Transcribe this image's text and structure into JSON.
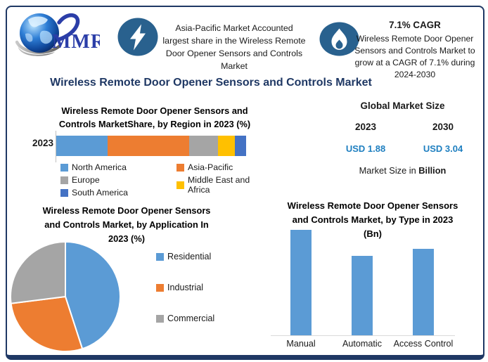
{
  "page": {
    "logo_text": "MMR",
    "title": "Wireless Remote Door Opener Sensors and Controls Market"
  },
  "highlight_left": {
    "icon": "lightning-icon",
    "text": "Asia-Pacific Market Accounted\nlargest share in the Wireless Remote\nDoor Opener Sensors and Controls\nMarket"
  },
  "highlight_right": {
    "icon": "flame-icon",
    "heading": "7.1% CAGR",
    "text": "Wireless Remote Door Opener\nSensors and Controls Market to\ngrow at a CAGR of 7.1% during\n2024-2030"
  },
  "market_size": {
    "title": "Global Market Size",
    "year_left": "2023",
    "year_right": "2030",
    "value_left": "USD 1.88",
    "value_right": "USD 3.04",
    "value_color": "#1e7fc0",
    "footnote_prefix": "Market Size in ",
    "footnote_bold": "Billion"
  },
  "colors": {
    "navy": "#1f3864",
    "icon_circle": "#29618e",
    "chart_blue": "#5b9bd5",
    "chart_orange": "#ed7d31",
    "chart_gray": "#a5a5a5",
    "chart_yellow": "#ffc000",
    "chart_darkblue": "#4472c4"
  },
  "chart_data": [
    {
      "type": "bar",
      "orientation": "horizontal-stacked",
      "title": "Wireless Remote Door Opener Sensors and\nControls MarketShare, by Region in 2023 (%)",
      "categories": [
        "2023"
      ],
      "series": [
        {
          "name": "North America",
          "value": 27,
          "color": "#5b9bd5"
        },
        {
          "name": "Asia-Pacific",
          "value": 43,
          "color": "#ed7d31"
        },
        {
          "name": "Europe",
          "value": 15,
          "color": "#a5a5a5"
        },
        {
          "name": "Middle East and Africa",
          "value": 9,
          "color": "#ffc000"
        },
        {
          "name": "South America",
          "value": 6,
          "color": "#4472c4"
        }
      ],
      "xlabel": "",
      "ylabel": "",
      "xlim": [
        0,
        100
      ],
      "grid": false,
      "legend_position": "bottom"
    },
    {
      "type": "pie",
      "title": "Wireless Remote Door Opener Sensors\nand Controls Market, by Application In\n2023 (%)",
      "slices": [
        {
          "label": "Residential",
          "value": 45,
          "color": "#5b9bd5"
        },
        {
          "label": "Industrial",
          "value": 28,
          "color": "#ed7d31"
        },
        {
          "label": "Commercial",
          "value": 27,
          "color": "#a5a5a5"
        }
      ],
      "start_angle_deg": 0,
      "legend_position": "right"
    },
    {
      "type": "bar",
      "orientation": "vertical",
      "title": "Wireless Remote Door Opener Sensors\nand Controls Market, by Type in 2023\n(Bn)",
      "categories": [
        "Manual",
        "Automatic",
        "Access Control"
      ],
      "values": [
        0.73,
        0.55,
        0.6
      ],
      "color": "#5b9bd5",
      "xlabel": "",
      "ylabel": "",
      "ylim": [
        0,
        0.78
      ],
      "grid": false,
      "legend_position": "none"
    }
  ]
}
